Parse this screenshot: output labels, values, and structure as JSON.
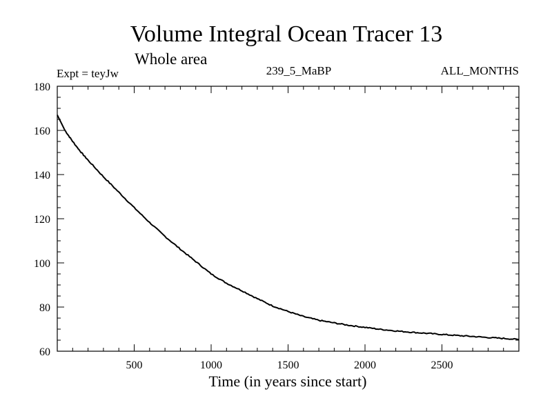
{
  "chart_data": {
    "type": "line",
    "title": "Volume Integral Ocean Tracer 13",
    "subtitle": "Whole area",
    "annotations": {
      "left": "Expt = teyJw",
      "center": "239_5_MaBP",
      "right": "ALL_MONTHS"
    },
    "xlabel": "Time (in years since start)",
    "ylabel": "",
    "xlim": [
      0,
      3000
    ],
    "ylim": [
      60,
      180
    ],
    "xticks": [
      500,
      1000,
      1500,
      2000,
      2500
    ],
    "yticks": [
      60,
      80,
      100,
      120,
      140,
      160,
      180
    ],
    "grid": false,
    "colors": {
      "line": "#000000",
      "frame": "#000000",
      "background": "#ffffff"
    },
    "series": [
      {
        "x": [
          0,
          50,
          100,
          150,
          200,
          300,
          400,
          500,
          600,
          700,
          800,
          900,
          1000,
          1100,
          1200,
          1300,
          1400,
          1500,
          1600,
          1700,
          1800,
          1900,
          2000,
          2100,
          2200,
          2300,
          2400,
          2500,
          2600,
          2700,
          2800,
          2900,
          3000
        ],
        "y": [
          167,
          160,
          155,
          150.5,
          146.5,
          139,
          132,
          125,
          118.3,
          112,
          106.2,
          100.6,
          95,
          90.8,
          87.4,
          83.8,
          80.5,
          78,
          75.7,
          74,
          72.8,
          71.7,
          70.8,
          69.9,
          69.2,
          68.6,
          68.1,
          67.6,
          67.1,
          66.7,
          66.2,
          65.8,
          65.3
        ]
      }
    ]
  }
}
